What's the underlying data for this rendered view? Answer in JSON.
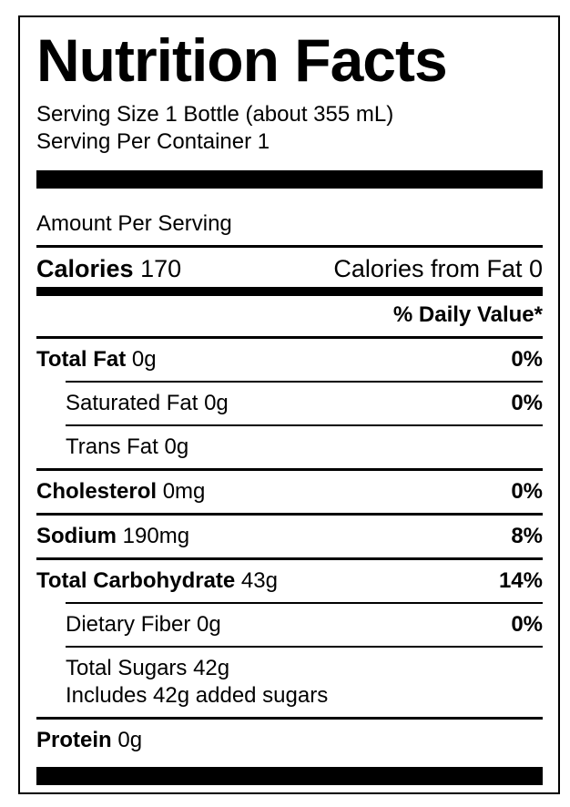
{
  "label": {
    "title": "Nutrition Facts",
    "serving_size": "Serving Size 1 Bottle (about 355 mL)",
    "servings_per_container": "Serving Per Container 1",
    "amount_per_serving": "Amount Per Serving",
    "calories": {
      "label": "Calories",
      "value": "170",
      "from_fat": "Calories from Fat 0"
    },
    "daily_value_header": "% Daily Value*",
    "colors": {
      "foreground": "#000000",
      "background": "#ffffff"
    },
    "rows": [
      {
        "name": "Total Fat",
        "amount": "0g",
        "dv": "0%"
      },
      {
        "name": "Saturated Fat 0g",
        "dv": "0%"
      },
      {
        "name": "Trans Fat 0g"
      },
      {
        "name": "Cholesterol",
        "amount": "0mg",
        "dv": "0%"
      },
      {
        "name": "Sodium",
        "amount": "190mg",
        "dv": "8%"
      },
      {
        "name": "Total Carbohydrate",
        "amount": "43g",
        "dv": "14%"
      },
      {
        "name": "Dietary Fiber 0g",
        "dv": "0%"
      },
      {
        "name": "Total Sugars 42g",
        "line2": "Includes 42g added sugars"
      },
      {
        "name": "Protein",
        "amount": "0g"
      }
    ]
  }
}
